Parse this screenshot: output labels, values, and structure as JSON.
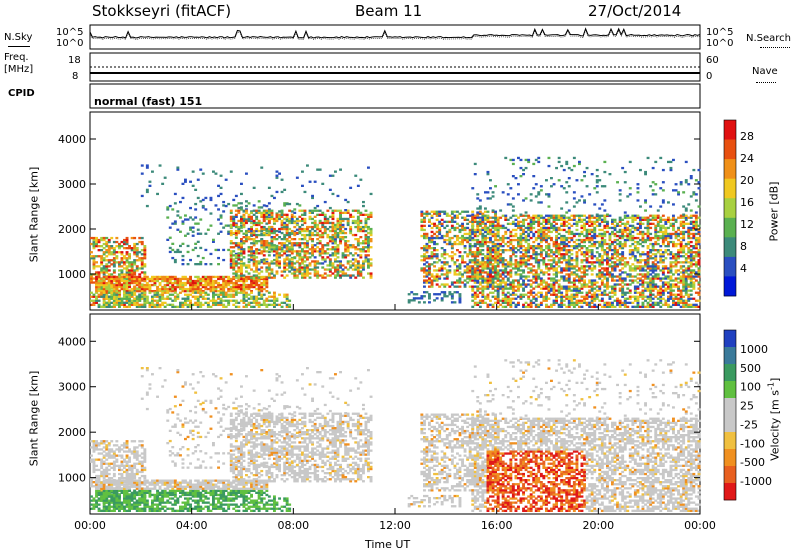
{
  "header": {
    "station": "Stokkseyri (fitACF)",
    "beam": "Beam 11",
    "date": "27/Oct/2014"
  },
  "noise_panel": {
    "left_label": "N.Sky",
    "right_label": "N.Search",
    "ticks_left": [
      "10^5",
      "10^0"
    ],
    "ticks_right": [
      "10^5",
      "10^0"
    ]
  },
  "freq_panel": {
    "left_label_1": "Freq.",
    "left_label_2": "[MHz]",
    "ticks_left": [
      "18",
      "8"
    ],
    "ticks_right": [
      "60",
      "0"
    ],
    "right_label": "Nave"
  },
  "cpid": {
    "label": "CPID",
    "value": "normal (fast) 151"
  },
  "chart_data": [
    {
      "type": "heatmap",
      "quantity": "Power",
      "ylabel": "Slant Range [km]",
      "ylim": [
        200,
        4600
      ],
      "yticks": [
        "1000",
        "2000",
        "3000",
        "4000"
      ],
      "xlim": [
        "00:00",
        "24:00"
      ],
      "colorbar": {
        "label": "Power [dB]",
        "ticks": [
          "4",
          "8",
          "12",
          "16",
          "20",
          "24",
          "28"
        ],
        "colors": [
          "#0018d8",
          "#2a4fc0",
          "#3c8a7a",
          "#5ab050",
          "#a8d040",
          "#f0c820",
          "#f09018",
          "#e85010",
          "#e01010"
        ]
      }
    },
    {
      "type": "heatmap",
      "quantity": "Velocity",
      "ylabel": "Slant Range [km]",
      "ylim": [
        200,
        4600
      ],
      "yticks": [
        "1000",
        "2000",
        "3000",
        "4000"
      ],
      "xlim": [
        "00:00",
        "24:00"
      ],
      "colorbar": {
        "label": "Velocity [m s",
        "label_sup": "-1",
        "label_end": "]",
        "ticks": [
          "1000",
          "500",
          "100",
          "25",
          "-25",
          "-100",
          "-500",
          "-1000"
        ],
        "colors": [
          "#2040c0",
          "#3a7a9a",
          "#3a9a60",
          "#60c040",
          "#c8c8c8",
          "#c8c8c8",
          "#f0c040",
          "#f09020",
          "#e86020",
          "#e01818"
        ]
      }
    }
  ],
  "xaxis": {
    "ticks": [
      "00:00",
      "04:00",
      "08:00",
      "12:00",
      "16:00",
      "20:00",
      "00:00"
    ],
    "label": "Time UT"
  }
}
